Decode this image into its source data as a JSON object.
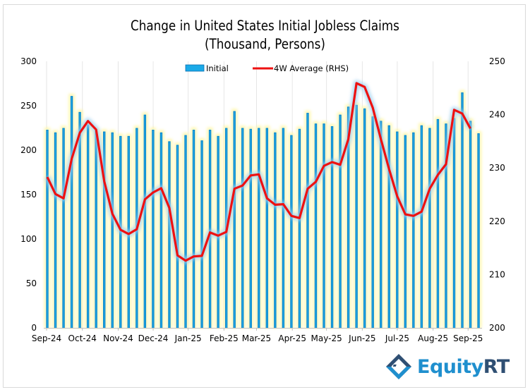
{
  "chart_data": {
    "type": "bar",
    "title_lines": [
      "Change in United States Initial Jobless Claims",
      "(Thousand, Persons)"
    ],
    "xlabel": "",
    "ylabel": "",
    "y_left": {
      "ylim": [
        0,
        300
      ],
      "ticks": [
        0,
        50,
        100,
        150,
        200,
        250,
        300
      ]
    },
    "y_right": {
      "ylim": [
        200,
        250
      ],
      "ticks": [
        200,
        210,
        220,
        230,
        240,
        250
      ]
    },
    "x_tick_labels": [
      "Sep-24",
      "Oct-24",
      "Nov-24",
      "Dec-24",
      "Jan-25",
      "Feb-25",
      "Mar-25",
      "Apr-25",
      "May-25",
      "Jun-25",
      "Jul-25",
      "Aug-25",
      "Sep-25"
    ],
    "x_tick_index": [
      0,
      4.4,
      8.8,
      13.1,
      17.4,
      21.8,
      25.8,
      30.2,
      34.4,
      38.8,
      43.1,
      47.5,
      51.8
    ],
    "grid": "vertical",
    "legend": {
      "placement": "top-center",
      "entries": [
        "Initial",
        "4W Average (RHS)"
      ]
    },
    "series": [
      {
        "name": "Initial",
        "type": "bar",
        "axis": "left",
        "color": "#0a84c8",
        "values": [
          223,
          220,
          225,
          261,
          243,
          229,
          222,
          221,
          220,
          216,
          216,
          225,
          240,
          223,
          220,
          210,
          206,
          217,
          223,
          211,
          223,
          216,
          225,
          244,
          225,
          224,
          225,
          225,
          220,
          225,
          217,
          224,
          242,
          230,
          230,
          227,
          240,
          249,
          251,
          247,
          238,
          233,
          228,
          221,
          217,
          220,
          228,
          225,
          235,
          230,
          236,
          265,
          233,
          219
        ]
      },
      {
        "name": "4W Average (RHS)",
        "type": "line",
        "axis": "right",
        "color": "#ee1111",
        "values": [
          228.3,
          225.1,
          224.3,
          231.7,
          236.6,
          238.8,
          237.2,
          227.5,
          221.4,
          218.4,
          217.6,
          218.5,
          224.1,
          225.4,
          226.2,
          222.5,
          213.6,
          212.6,
          213.4,
          213.5,
          217.9,
          217.3,
          218.0,
          226.1,
          226.7,
          228.6,
          228.8,
          224.3,
          223.1,
          223.2,
          221.0,
          220.6,
          226.1,
          227.4,
          230.4,
          231.1,
          230.6,
          235.4,
          245.9,
          245.2,
          241.3,
          235.4,
          229.8,
          224.7,
          221.3,
          221.0,
          221.8,
          226.1,
          228.7,
          230.7,
          240.9,
          240.2,
          237.4
        ]
      }
    ]
  },
  "logo": {
    "name": "EquityRT",
    "prefix": "Equity",
    "suffix": "RT"
  }
}
